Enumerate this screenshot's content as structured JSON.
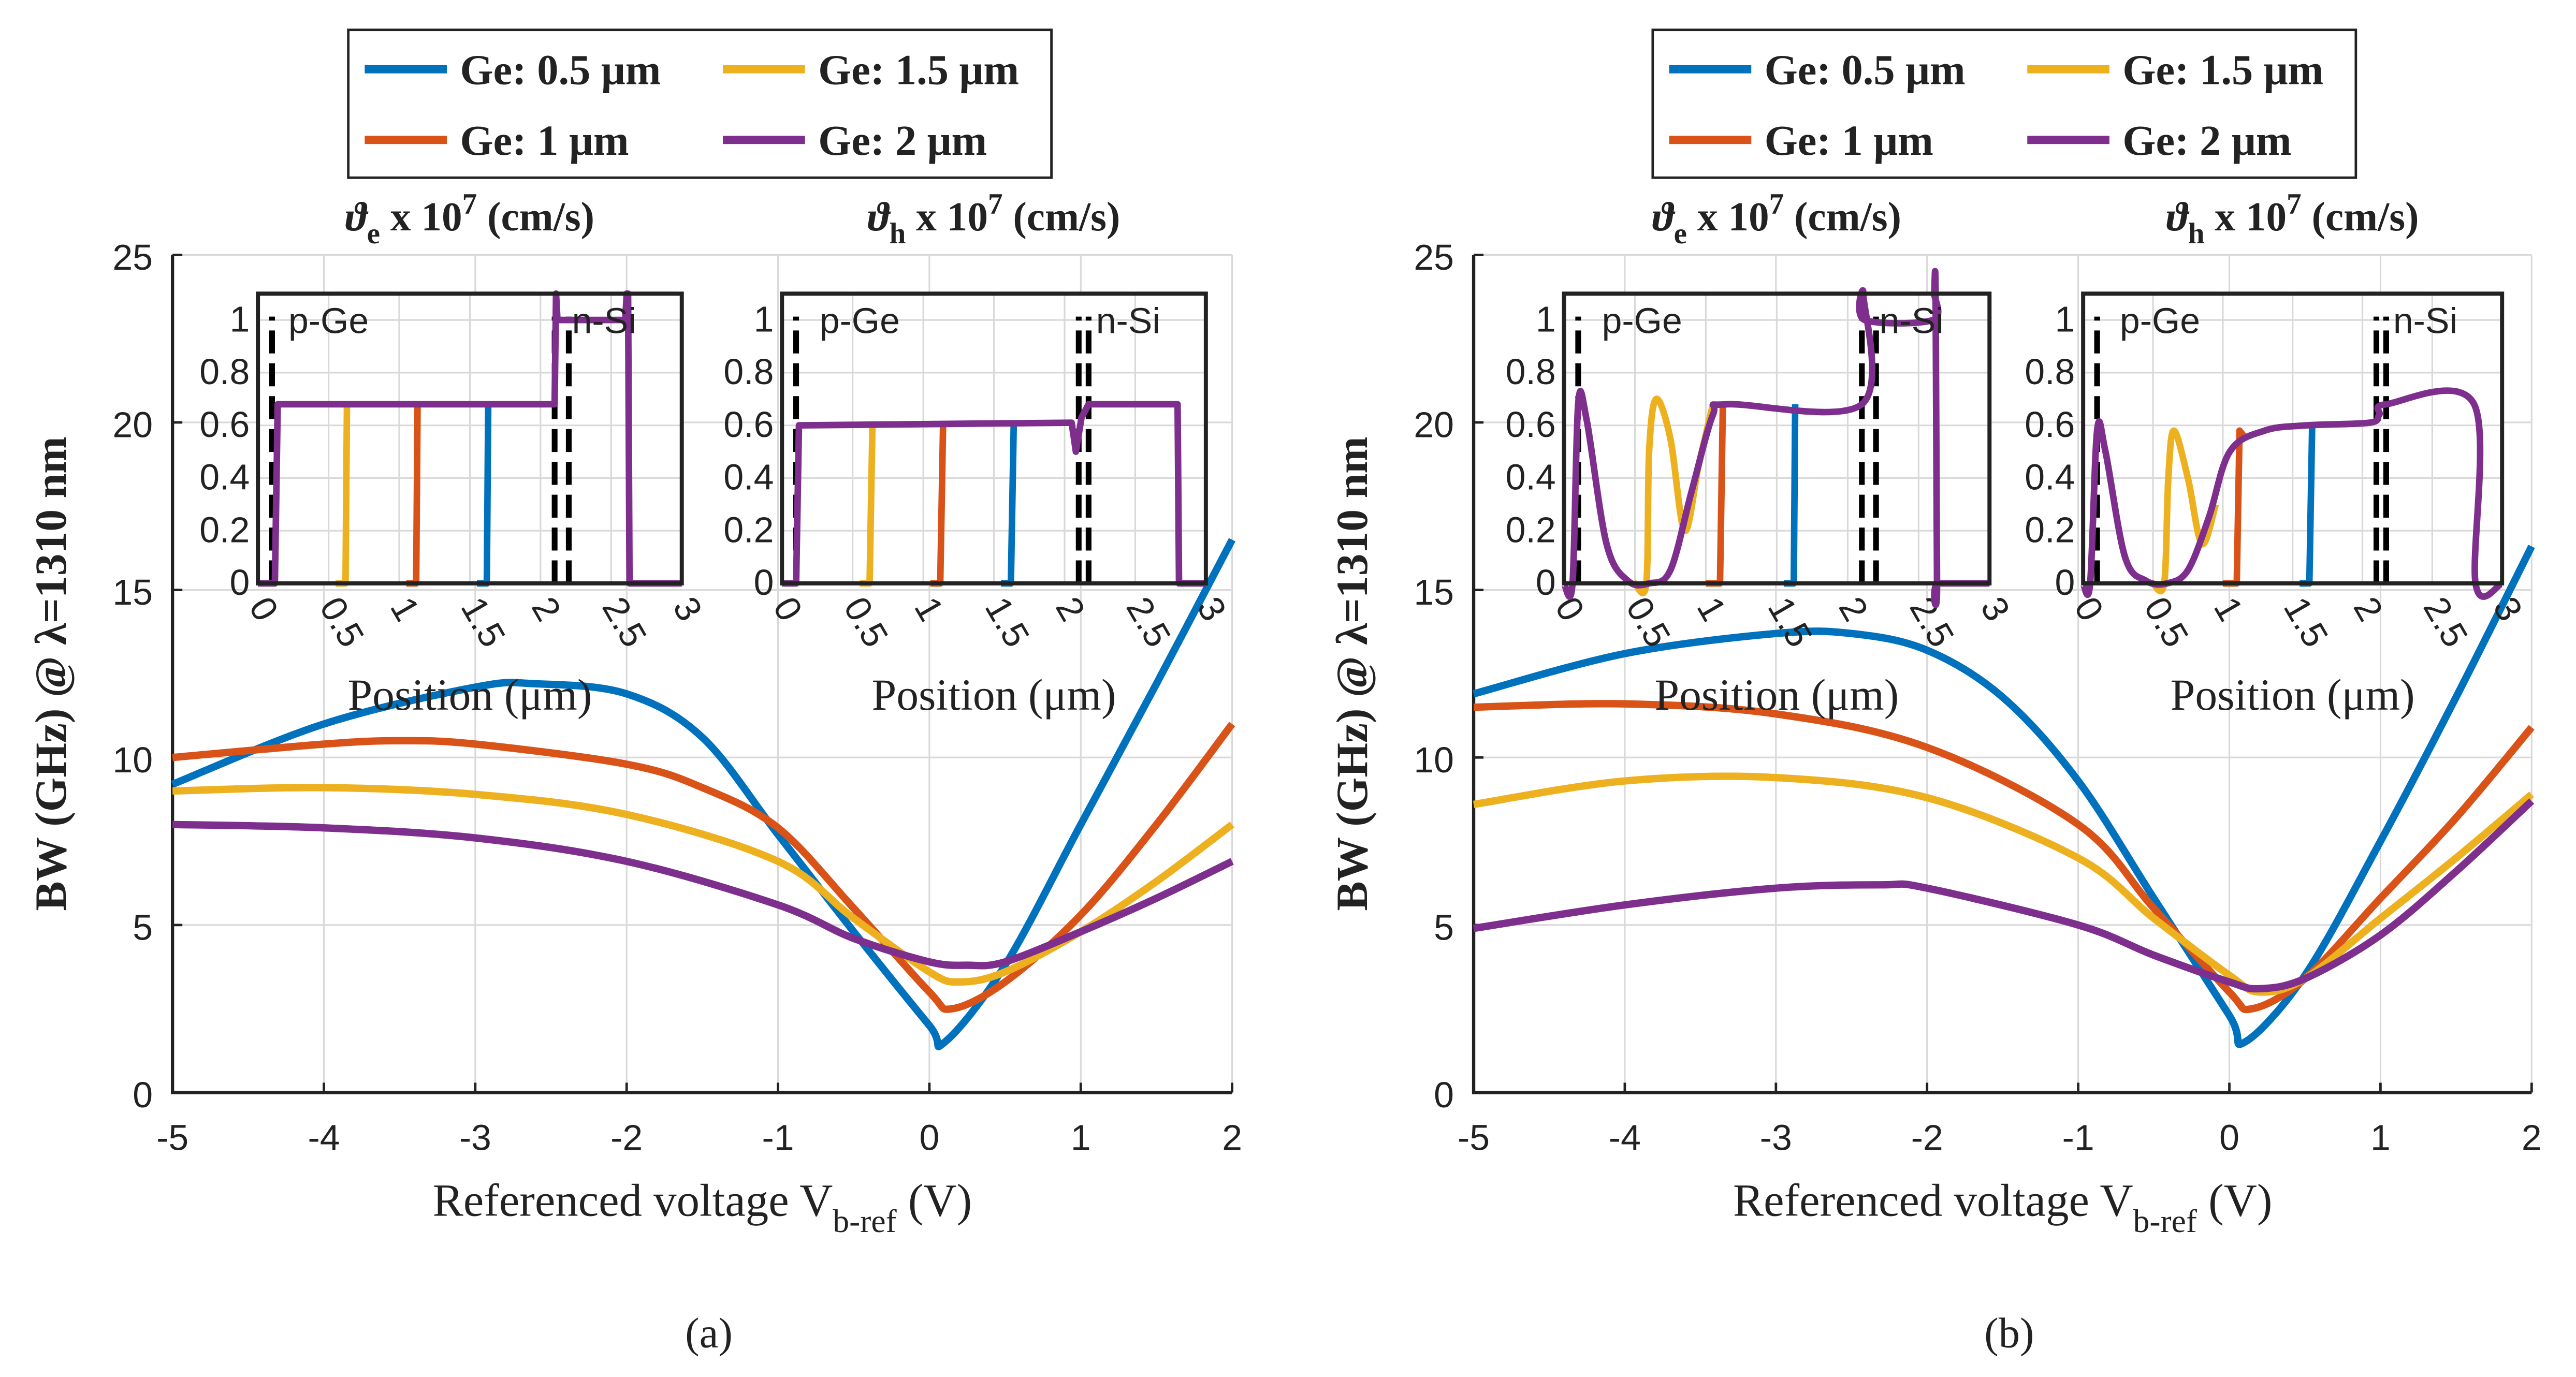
{
  "colors": {
    "blue": "#0072BD",
    "orange": "#D95319",
    "yellow": "#EDB120",
    "purple": "#7E2F8E",
    "dash": "#000000",
    "grid": "#d9d9d9"
  },
  "legend": [
    {
      "label": "Ge: 0.5 μm",
      "color": "#0072BD"
    },
    {
      "label": "Ge: 1.5 μm",
      "color": "#EDB120"
    },
    {
      "label": "Ge: 1 μm",
      "color": "#D95319"
    },
    {
      "label": "Ge: 2 μm",
      "color": "#7E2F8E"
    }
  ],
  "chart_data": [
    {
      "panel": "a",
      "type": "line",
      "caption": "(a)",
      "ylabel": "BW (GHz) @ λ=1310 nm",
      "xlabel": {
        "main": "Referenced voltage V",
        "sub": "b-ref",
        "tail": " (V)"
      },
      "xlim": [
        -5,
        2
      ],
      "ylim": [
        0,
        25
      ],
      "xticks": [
        -5,
        -4,
        -3,
        -2,
        -1,
        0,
        1,
        2
      ],
      "yticks": [
        0,
        5,
        10,
        15,
        20,
        25
      ],
      "grid": true,
      "series": [
        {
          "name": "Ge: 0.5 μm",
          "color": "#0072BD",
          "x": [
            -5,
            -4,
            -3,
            -2.6,
            -2,
            -1.5,
            -1,
            -0.5,
            0,
            0.1,
            0.5,
            1,
            1.5,
            2
          ],
          "y": [
            9.2,
            11.0,
            12.1,
            12.2,
            11.9,
            10.6,
            7.7,
            4.8,
            2.0,
            1.5,
            3.8,
            8.0,
            12.2,
            16.5
          ]
        },
        {
          "name": "Ge: 1 μm",
          "color": "#D95319",
          "x": [
            -5,
            -4,
            -3.5,
            -3,
            -2,
            -1.5,
            -1,
            -0.5,
            0,
            0.15,
            0.5,
            1,
            1.5,
            2
          ],
          "y": [
            10.0,
            10.4,
            10.5,
            10.4,
            9.8,
            9.1,
            7.9,
            5.5,
            3.0,
            2.5,
            3.3,
            5.3,
            8.0,
            11.0
          ]
        },
        {
          "name": "Ge: 1.5 μm",
          "color": "#EDB120",
          "x": [
            -5,
            -4,
            -3,
            -2,
            -1,
            -0.5,
            0,
            0.2,
            0.5,
            1,
            1.5,
            2
          ],
          "y": [
            9.0,
            9.1,
            8.9,
            8.3,
            6.9,
            5.2,
            3.6,
            3.3,
            3.6,
            4.8,
            6.3,
            8.0
          ]
        },
        {
          "name": "Ge: 2 μm",
          "color": "#7E2F8E",
          "x": [
            -5,
            -4,
            -3,
            -2,
            -1,
            -0.5,
            0,
            0.25,
            0.5,
            1,
            1.5,
            2
          ],
          "y": [
            8.0,
            7.9,
            7.6,
            6.9,
            5.6,
            4.6,
            3.9,
            3.8,
            3.9,
            4.8,
            5.8,
            6.9
          ]
        }
      ]
    },
    {
      "panel": "b",
      "type": "line",
      "caption": "(b)",
      "ylabel": "BW (GHz) @ λ=1310 nm",
      "xlabel": {
        "main": "Referenced voltage V",
        "sub": "b-ref",
        "tail": " (V)"
      },
      "xlim": [
        -5,
        2
      ],
      "ylim": [
        0,
        25
      ],
      "xticks": [
        -5,
        -4,
        -3,
        -2,
        -1,
        0,
        1,
        2
      ],
      "yticks": [
        0,
        5,
        10,
        15,
        20,
        25
      ],
      "grid": true,
      "series": [
        {
          "name": "Ge: 0.5 μm",
          "color": "#0072BD",
          "x": [
            -5,
            -4,
            -3,
            -2.5,
            -2,
            -1.5,
            -1,
            -0.5,
            0,
            0.1,
            0.5,
            1,
            1.5,
            2
          ],
          "y": [
            11.9,
            13.1,
            13.7,
            13.7,
            13.2,
            11.8,
            9.3,
            5.8,
            2.3,
            1.5,
            3.5,
            7.5,
            11.8,
            16.3
          ]
        },
        {
          "name": "Ge: 1 μm",
          "color": "#D95319",
          "x": [
            -5,
            -4,
            -3,
            -2,
            -1,
            -0.5,
            0,
            0.15,
            0.5,
            1,
            1.5,
            2
          ],
          "y": [
            11.5,
            11.6,
            11.3,
            10.3,
            8.0,
            5.5,
            3.0,
            2.5,
            3.4,
            5.8,
            8.2,
            10.9
          ]
        },
        {
          "name": "Ge: 1.5 μm",
          "color": "#EDB120",
          "x": [
            -5,
            -4,
            -3,
            -2,
            -1,
            -0.5,
            0,
            0.2,
            0.5,
            1,
            1.5,
            2
          ],
          "y": [
            8.6,
            9.3,
            9.4,
            8.8,
            7.0,
            5.2,
            3.5,
            3.0,
            3.4,
            5.2,
            7.0,
            8.9
          ]
        },
        {
          "name": "Ge: 2 μm",
          "color": "#7E2F8E",
          "x": [
            -5,
            -4,
            -3,
            -2.3,
            -2,
            -1,
            -0.5,
            0,
            0.2,
            0.5,
            1,
            1.5,
            2
          ],
          "y": [
            4.9,
            5.6,
            6.1,
            6.2,
            6.1,
            5.0,
            4.1,
            3.3,
            3.1,
            3.4,
            4.7,
            6.6,
            8.7
          ]
        }
      ]
    },
    {
      "panel": "a-inset-electron",
      "type": "line",
      "title": {
        "sym": "ϑ",
        "sub": "e",
        "mid": " x 10",
        "sup": "7",
        "tail": " (cm/s)"
      },
      "xlabel": "Position (μm)",
      "xlim": [
        0,
        3
      ],
      "ylim": [
        0,
        1.1
      ],
      "xticks": [
        "0",
        "0.5",
        "1",
        "1.5",
        "2",
        "2.5",
        "3"
      ],
      "yticks": [
        "0",
        "0.2",
        "0.4",
        "0.6",
        "0.8",
        "1"
      ],
      "region_labels": [
        {
          "text": "p-Ge",
          "x": 0.5,
          "y": 1.0
        },
        {
          "text": "n-Si",
          "x": 2.45,
          "y": 1.0
        }
      ],
      "dashed_x": [
        0.1,
        2.1,
        2.2
      ],
      "series": [
        {
          "name": "Ge: 0.5 μm",
          "color": "#0072BD",
          "x": [
            1.55,
            1.62,
            1.63
          ],
          "y": [
            0,
            0,
            0.68
          ]
        },
        {
          "name": "Ge: 1 μm",
          "color": "#D95319",
          "x": [
            1.05,
            1.12,
            1.13
          ],
          "y": [
            0,
            0,
            0.68
          ]
        },
        {
          "name": "Ge: 1.5 μm",
          "color": "#EDB120",
          "x": [
            0.55,
            0.62,
            0.63
          ],
          "y": [
            0,
            0,
            0.68
          ]
        },
        {
          "name": "Ge: 2 μm",
          "color": "#7E2F8E",
          "x": [
            0,
            0.12,
            0.14,
            2.1,
            2.11,
            2.12,
            2.6,
            2.61,
            2.62,
            2.63,
            2.64,
            3
          ],
          "y": [
            0,
            0,
            0.68,
            0.68,
            1.1,
            1.0,
            1.0,
            1.1,
            1.1,
            0,
            0,
            0
          ]
        }
      ]
    },
    {
      "panel": "a-inset-hole",
      "type": "line",
      "title": {
        "sym": "ϑ",
        "sub": "h",
        "mid": " x 10",
        "sup": "7",
        "tail": " (cm/s)"
      },
      "xlabel": "Position (μm)",
      "xlim": [
        0,
        3
      ],
      "ylim": [
        0,
        1.1
      ],
      "xticks": [
        "0",
        "0.5",
        "1",
        "1.5",
        "2",
        "2.5",
        "3"
      ],
      "yticks": [
        "0",
        "0.2",
        "0.4",
        "0.6",
        "0.8",
        "1"
      ],
      "region_labels": [
        {
          "text": "p-Ge",
          "x": 0.55,
          "y": 1.0
        },
        {
          "text": "n-Si",
          "x": 2.45,
          "y": 1.0
        }
      ],
      "dashed_x": [
        0.1,
        2.1,
        2.17
      ],
      "series": [
        {
          "name": "Ge: 0.5 μm",
          "color": "#0072BD",
          "x": [
            1.55,
            1.62,
            1.64
          ],
          "y": [
            0,
            0,
            0.6
          ]
        },
        {
          "name": "Ge: 1 μm",
          "color": "#D95319",
          "x": [
            1.05,
            1.12,
            1.14
          ],
          "y": [
            0,
            0,
            0.6
          ]
        },
        {
          "name": "Ge: 1.5 μm",
          "color": "#EDB120",
          "x": [
            0.55,
            0.62,
            0.64
          ],
          "y": [
            0,
            0,
            0.6
          ]
        },
        {
          "name": "Ge: 2 μm",
          "color": "#7E2F8E",
          "x": [
            0,
            0.1,
            0.12,
            2.05,
            2.08,
            2.12,
            2.17,
            2.8,
            2.81,
            3
          ],
          "y": [
            0,
            0,
            0.6,
            0.61,
            0.5,
            0.63,
            0.68,
            0.68,
            0,
            0
          ]
        }
      ]
    },
    {
      "panel": "b-inset-electron",
      "type": "line",
      "title": {
        "sym": "ϑ",
        "sub": "e",
        "mid": " x 10",
        "sup": "7",
        "tail": " (cm/s)"
      },
      "xlabel": "Position (μm)",
      "xlim": [
        0,
        3
      ],
      "ylim": [
        0,
        1.1
      ],
      "xticks": [
        "0",
        "0.5",
        "1",
        "1.5",
        "2",
        "2.5",
        "3"
      ],
      "yticks": [
        "0",
        "0.2",
        "0.4",
        "0.6",
        "0.8",
        "1"
      ],
      "region_labels": [
        {
          "text": "p-Ge",
          "x": 0.55,
          "y": 1.0
        },
        {
          "text": "n-Si",
          "x": 2.45,
          "y": 1.0
        }
      ],
      "dashed_x": [
        0.1,
        2.1,
        2.2
      ],
      "series": [
        {
          "name": "Ge: 0.5 μm",
          "color": "#0072BD",
          "x": [
            1.55,
            1.62,
            1.63
          ],
          "y": [
            0,
            0,
            0.68
          ]
        },
        {
          "name": "Ge: 1 μm",
          "color": "#D95319",
          "x": [
            1.0,
            1.1,
            1.12
          ],
          "y": [
            0,
            0,
            0.68
          ]
        },
        {
          "name": "Ge: 1.5 μm",
          "color": "#EDB120",
          "x": [
            0.5,
            0.58,
            0.6,
            0.65,
            0.75,
            0.85,
            0.95,
            1.05
          ],
          "y": [
            0,
            0,
            0.5,
            0.7,
            0.55,
            0.2,
            0.45,
            0.68
          ]
        },
        {
          "name": "Ge: 2 μm",
          "color": "#7E2F8E",
          "x": [
            0,
            0.06,
            0.1,
            0.16,
            0.3,
            0.45,
            0.6,
            0.75,
            0.9,
            1.05,
            1.15,
            2.1,
            2.11,
            2.12,
            2.6,
            2.61,
            2.62,
            2.63,
            2.64,
            3
          ],
          "y": [
            0,
            0,
            0.68,
            0.62,
            0.15,
            0.01,
            0,
            0.05,
            0.35,
            0.64,
            0.68,
            0.68,
            1.1,
            1.0,
            1.0,
            1.1,
            1.1,
            0,
            0,
            0
          ]
        }
      ]
    },
    {
      "panel": "b-inset-hole",
      "type": "line",
      "title": {
        "sym": "ϑ",
        "sub": "h",
        "mid": " x 10",
        "sup": "7",
        "tail": " (cm/s)"
      },
      "xlabel": "Position (μm)",
      "xlim": [
        0,
        3
      ],
      "ylim": [
        0,
        1.1
      ],
      "xticks": [
        "0",
        "0.5",
        "1",
        "1.5",
        "2",
        "2.5",
        "3"
      ],
      "yticks": [
        "0",
        "0.2",
        "0.4",
        "0.6",
        "0.8",
        "1"
      ],
      "region_labels": [
        {
          "text": "p-Ge",
          "x": 0.55,
          "y": 1.0
        },
        {
          "text": "n-Si",
          "x": 2.45,
          "y": 1.0
        }
      ],
      "dashed_x": [
        0.1,
        2.1,
        2.17
      ],
      "series": [
        {
          "name": "Ge: 0.5 μm",
          "color": "#0072BD",
          "x": [
            1.55,
            1.62,
            1.64
          ],
          "y": [
            0,
            0,
            0.6
          ]
        },
        {
          "name": "Ge: 1 μm",
          "color": "#D95319",
          "x": [
            1.0,
            1.1,
            1.12,
            1.15
          ],
          "y": [
            0,
            0,
            0.58,
            0.56
          ]
        },
        {
          "name": "Ge: 1.5 μm",
          "color": "#EDB120",
          "x": [
            0.5,
            0.58,
            0.61,
            0.65,
            0.75,
            0.85,
            0.95
          ],
          "y": [
            0,
            0,
            0.4,
            0.58,
            0.4,
            0.15,
            0.3
          ]
        },
        {
          "name": "Ge: 2 μm",
          "color": "#7E2F8E",
          "x": [
            0,
            0.05,
            0.1,
            0.16,
            0.3,
            0.45,
            0.6,
            0.75,
            0.9,
            1.05,
            1.3,
            1.6,
            2.05,
            2.12,
            2.17,
            2.8,
            2.81,
            3
          ],
          "y": [
            0,
            0,
            0.58,
            0.5,
            0.1,
            0.01,
            0,
            0.05,
            0.25,
            0.5,
            0.58,
            0.6,
            0.61,
            0.64,
            0.68,
            0.68,
            0,
            0
          ]
        }
      ]
    }
  ]
}
